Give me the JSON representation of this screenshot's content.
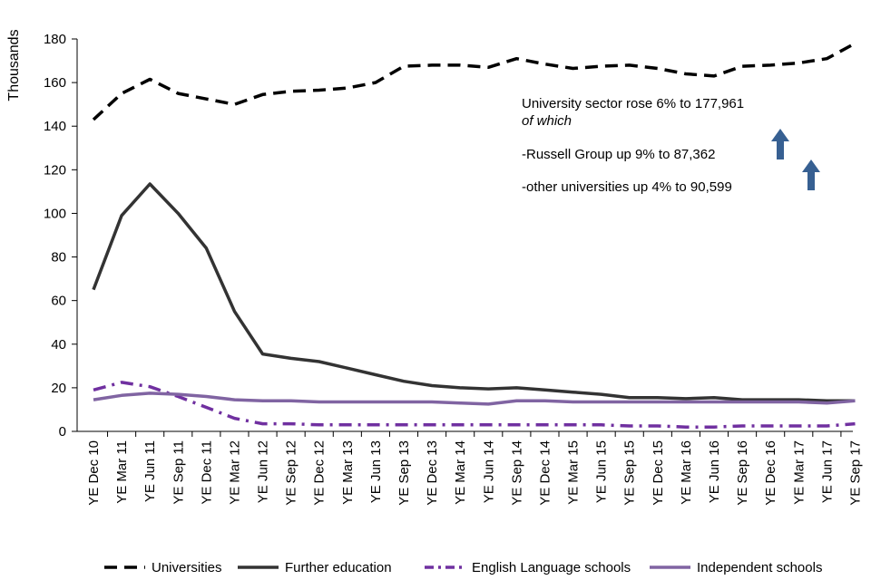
{
  "chart_data": {
    "type": "line",
    "ylabel": "Thousands",
    "xlabel": "",
    "ylim": [
      0,
      180
    ],
    "yticks": [
      0,
      20,
      40,
      60,
      80,
      100,
      120,
      140,
      160,
      180
    ],
    "categories": [
      "YE Dec 10",
      "YE Mar 11",
      "YE Jun 11",
      "YE Sep 11",
      "YE Dec 11",
      "YE Mar 12",
      "YE Jun 12",
      "YE Sep 12",
      "YE Dec 12",
      "YE Mar 13",
      "YE Jun 13",
      "YE Sep 13",
      "YE Dec 13",
      "YE Mar 14",
      "YE Jun 14",
      "YE Sep 14",
      "YE Dec 14",
      "YE Mar 15",
      "YE Jun 15",
      "YE Sep 15",
      "YE Dec 15",
      "YE Mar 16",
      "YE Jun 16",
      "YE Sep 16",
      "YE Dec 16",
      "YE Mar 17",
      "YE Jun 17",
      "YE Sep 17"
    ],
    "series": [
      {
        "name": "Universities",
        "color": "#000000",
        "dash": "dashed",
        "values": [
          143,
          155,
          161.5,
          155,
          152.5,
          150,
          154.5,
          156,
          156.5,
          157.5,
          160,
          167.5,
          168,
          168,
          167,
          171,
          168.5,
          166.5,
          167.5,
          168,
          166.5,
          164,
          163,
          167.5,
          168,
          169,
          171,
          178
        ]
      },
      {
        "name": "Further education",
        "color": "#333333",
        "dash": "solid",
        "values": [
          65,
          99,
          113.5,
          100,
          84,
          55,
          35.5,
          33.5,
          32,
          29,
          26,
          23,
          21,
          20,
          19.5,
          20,
          19,
          18,
          17,
          15.5,
          15.5,
          15,
          15.5,
          14.5,
          14.5,
          14.5,
          14,
          14
        ]
      },
      {
        "name": "English Language schools",
        "color": "#7030A0",
        "dash": "dashdot",
        "values": [
          19,
          22.5,
          20.5,
          16,
          11,
          6,
          3.5,
          3.5,
          3,
          3,
          3,
          3,
          3,
          3,
          3,
          3,
          3,
          3,
          3,
          2.5,
          2.5,
          2,
          2,
          2.5,
          2.5,
          2.5,
          2.5,
          3.5
        ]
      },
      {
        "name": "Independent schools",
        "color": "#8064A2",
        "dash": "solid",
        "values": [
          14.5,
          16.5,
          17.5,
          17,
          16,
          14.5,
          14,
          14,
          13.5,
          13.5,
          13.5,
          13.5,
          13.5,
          13,
          12.5,
          14,
          14,
          13.5,
          13.5,
          13.5,
          13.5,
          13.5,
          13.5,
          13.5,
          13.5,
          13.5,
          13,
          14
        ]
      }
    ],
    "annotations": {
      "line1": "University sector rose  6% to 177,961",
      "line2": "of which",
      "line3": "-Russell Group up 9% to 87,362",
      "line4": "-other universities up 4% to 90,599"
    },
    "arrow_color": "#376092",
    "legend_position": "bottom",
    "grid": false
  }
}
